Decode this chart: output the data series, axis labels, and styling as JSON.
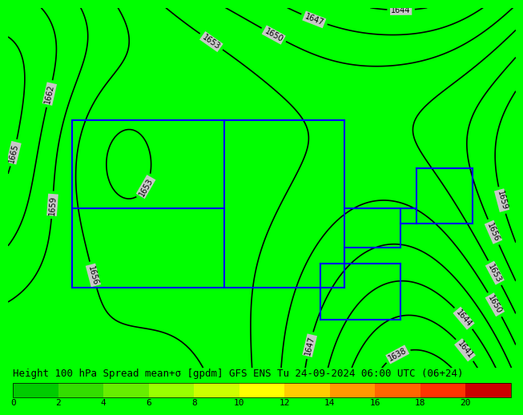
{
  "title": "Height 100 hPa Spread mean+σ [gpdm] GFS ENS Tu 24-09-2024 06:00 UTC (06+24)",
  "colorbar_ticks": [
    0,
    2,
    4,
    6,
    8,
    10,
    12,
    14,
    16,
    18,
    20
  ],
  "colorbar_colors": [
    "#00CC00",
    "#33DD00",
    "#66EE00",
    "#99FF00",
    "#CCFF00",
    "#FFFF00",
    "#FFCC00",
    "#FF9900",
    "#FF6600",
    "#FF3300",
    "#CC0000"
  ],
  "bg_color": "#00FF00",
  "contour_color": "#000000",
  "blue_line_color": "#0000FF",
  "label_bg": "#C8C8C8",
  "font_size_title": 9,
  "font_size_labels": 7,
  "font_size_colorbar": 8
}
